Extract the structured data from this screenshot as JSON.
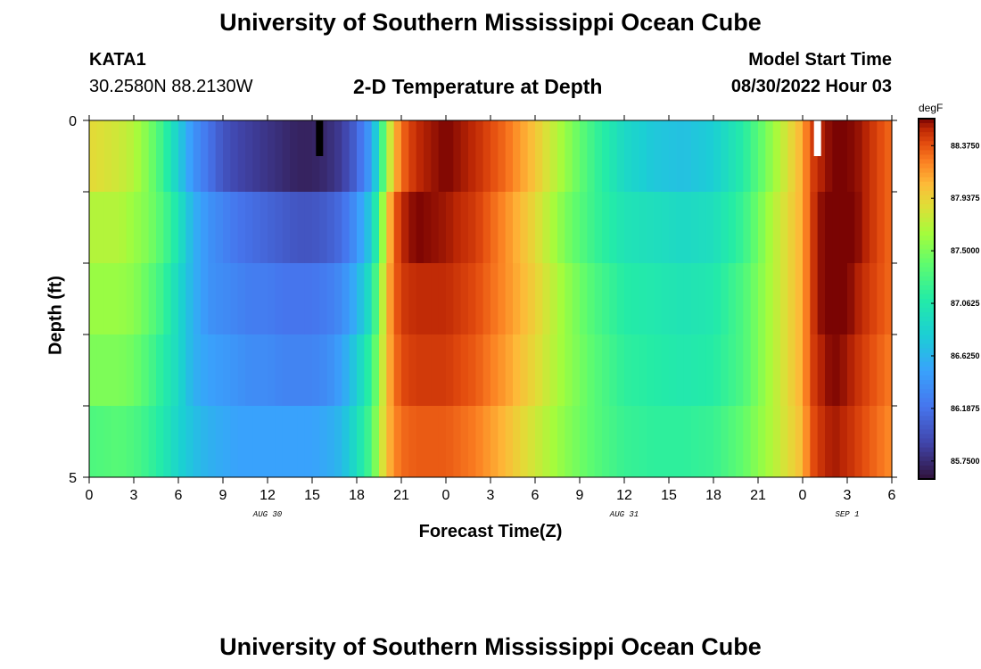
{
  "header": {
    "title": "University of Southern Mississippi Ocean Cube",
    "station": "KATA1",
    "coords": "30.2580N  88.2130W",
    "subtitle": "2-D Temperature at Depth",
    "start_label": "Model Start Time",
    "start_value": "08/30/2022 Hour 03"
  },
  "footer": {
    "title": "University of Southern Mississippi Ocean Cube"
  },
  "chart_data": {
    "type": "heatmap",
    "title": "2-D Temperature at Depth",
    "xlabel": "Forecast Time(Z)",
    "ylabel": "Depth (ft)",
    "x_start_hour": 0,
    "x_end_hour": 54,
    "x_tick_labels": [
      "0",
      "3",
      "6",
      "9",
      "12",
      "15",
      "18",
      "21",
      "0",
      "3",
      "6",
      "9",
      "12",
      "15",
      "18",
      "21",
      "0",
      "3",
      "6"
    ],
    "date_labels": [
      {
        "hour": 12,
        "label": "AUG 30"
      },
      {
        "hour": 36,
        "label": "AUG 31"
      },
      {
        "hour": 51,
        "label": "SEP 1"
      }
    ],
    "y_tick_labels": [
      "0",
      "5"
    ],
    "ylim": [
      0,
      5
    ],
    "depth_levels": 5,
    "colorbar": {
      "unit": "degF",
      "min": 85.6,
      "max": 88.6,
      "tick_labels": [
        "88.3750",
        "87.9375",
        "87.5000",
        "87.0625",
        "86.6250",
        "86.1875",
        "85.7500"
      ],
      "tick_values": [
        88.375,
        87.9375,
        87.5,
        87.0625,
        86.625,
        86.1875,
        85.75
      ]
    },
    "control_hours": [
      0,
      2,
      3,
      4,
      5,
      6,
      7,
      8,
      9,
      10,
      11,
      12,
      13,
      14,
      15,
      16,
      17,
      18,
      19,
      19.5,
      20,
      20.5,
      21,
      22,
      24,
      26,
      28,
      30,
      32,
      34,
      36,
      38,
      40,
      42,
      44,
      46,
      48,
      48.5,
      49,
      50,
      51,
      52,
      54
    ],
    "temperature_rows": [
      [
        87.9,
        87.8,
        87.7,
        87.5,
        87.2,
        86.8,
        86.4,
        86.2,
        86.0,
        85.9,
        85.85,
        85.8,
        85.75,
        85.7,
        85.7,
        85.75,
        85.85,
        86.1,
        86.5,
        87.0,
        87.6,
        88.0,
        88.3,
        88.5,
        88.6,
        88.5,
        88.3,
        88.0,
        87.6,
        87.2,
        86.9,
        86.75,
        86.7,
        86.8,
        87.1,
        87.6,
        88.1,
        88.4,
        88.5,
        88.6,
        88.6,
        88.55,
        88.3
      ],
      [
        87.7,
        87.7,
        87.6,
        87.5,
        87.3,
        87.0,
        86.6,
        86.4,
        86.3,
        86.2,
        86.15,
        86.1,
        86.05,
        86.0,
        86.0,
        86.05,
        86.15,
        86.4,
        86.8,
        87.3,
        87.9,
        88.3,
        88.5,
        88.6,
        88.55,
        88.45,
        88.2,
        87.9,
        87.5,
        87.2,
        87.0,
        86.95,
        86.9,
        86.95,
        87.2,
        87.7,
        88.1,
        88.4,
        88.55,
        88.65,
        88.65,
        88.55,
        88.3
      ],
      [
        87.6,
        87.6,
        87.55,
        87.4,
        87.2,
        86.9,
        86.6,
        86.4,
        86.35,
        86.3,
        86.25,
        86.25,
        86.2,
        86.2,
        86.2,
        86.25,
        86.35,
        86.6,
        87.0,
        87.5,
        88.0,
        88.3,
        88.45,
        88.5,
        88.5,
        88.4,
        88.2,
        87.95,
        87.6,
        87.3,
        87.1,
        87.05,
        87.0,
        87.05,
        87.3,
        87.7,
        88.1,
        88.4,
        88.55,
        88.65,
        88.6,
        88.5,
        88.3
      ],
      [
        87.5,
        87.5,
        87.45,
        87.3,
        87.1,
        86.9,
        86.6,
        86.5,
        86.45,
        86.4,
        86.35,
        86.35,
        86.3,
        86.3,
        86.3,
        86.35,
        86.5,
        86.8,
        87.2,
        87.6,
        88.0,
        88.25,
        88.4,
        88.45,
        88.45,
        88.35,
        88.15,
        87.9,
        87.6,
        87.35,
        87.15,
        87.1,
        87.05,
        87.1,
        87.3,
        87.7,
        88.1,
        88.4,
        88.5,
        88.6,
        88.55,
        88.45,
        88.25
      ],
      [
        87.3,
        87.35,
        87.3,
        87.2,
        87.05,
        86.85,
        86.7,
        86.6,
        86.55,
        86.5,
        86.5,
        86.5,
        86.5,
        86.5,
        86.5,
        86.55,
        86.65,
        86.95,
        87.3,
        87.7,
        88.0,
        88.2,
        88.3,
        88.35,
        88.35,
        88.25,
        88.05,
        87.8,
        87.55,
        87.35,
        87.2,
        87.15,
        87.15,
        87.2,
        87.4,
        87.7,
        88.05,
        88.35,
        88.45,
        88.55,
        88.5,
        88.4,
        88.2
      ]
    ],
    "markers": [
      {
        "hour": 15.5,
        "color": "#000000"
      },
      {
        "hour": 49,
        "color": "#ffffff"
      }
    ]
  }
}
